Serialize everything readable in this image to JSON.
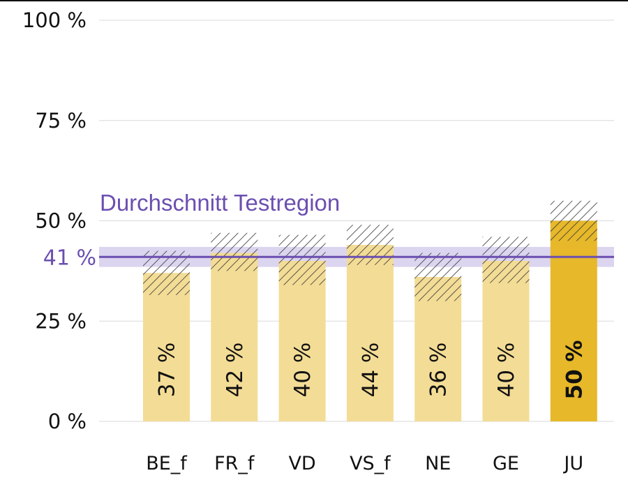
{
  "chart_data": {
    "type": "bar",
    "y_ticks": [
      "0 %",
      "25 %",
      "50 %",
      "75 %",
      "100 %"
    ],
    "ylim": [
      0,
      100
    ],
    "grid": true,
    "categories": [
      "BE_f",
      "FR_f",
      "VD",
      "VS_f",
      "NE",
      "GE",
      "JU"
    ],
    "values": [
      37,
      42,
      40,
      44,
      36,
      40,
      50
    ],
    "value_labels": [
      "37 %",
      "42 %",
      "40 %",
      "44 %",
      "36 %",
      "40 %",
      "50 %"
    ],
    "ci_low": [
      31.5,
      37.5,
      34,
      39,
      30,
      34.5,
      45
    ],
    "ci_high": [
      42.5,
      47,
      46.5,
      49,
      42,
      46,
      55
    ],
    "highlight": "JU",
    "average": {
      "title": "Durchschnitt Testregion",
      "label": "41 %",
      "value": 41,
      "band": [
        38.5,
        43.5
      ]
    },
    "colors": {
      "bar": "#f3dc95",
      "highlight_bar": "#e6b82a",
      "average": "#6b4fb0",
      "average_band": "#d8d0ee",
      "grid": "#d9d9d9",
      "hatch": "#333333"
    }
  }
}
